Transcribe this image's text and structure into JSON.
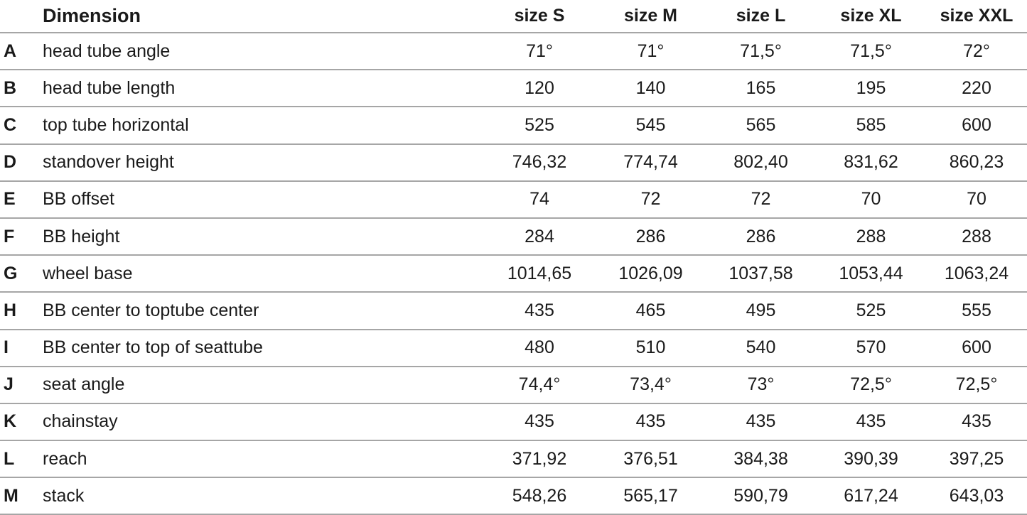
{
  "chart_data": {
    "type": "table",
    "title": "",
    "columns": [
      "Dimension",
      "size S",
      "size M",
      "size L",
      "size XL",
      "size XXL"
    ],
    "rows": [
      {
        "letter": "A",
        "name": "head tube angle",
        "values": [
          "71°",
          "71°",
          "71,5°",
          "71,5°",
          "72°"
        ]
      },
      {
        "letter": "B",
        "name": "head tube length",
        "values": [
          "120",
          "140",
          "165",
          "195",
          "220"
        ]
      },
      {
        "letter": "C",
        "name": "top tube horizontal",
        "values": [
          "525",
          "545",
          "565",
          "585",
          "600"
        ]
      },
      {
        "letter": "D",
        "name": "standover height",
        "values": [
          "746,32",
          "774,74",
          "802,40",
          "831,62",
          "860,23"
        ]
      },
      {
        "letter": "E",
        "name": "BB offset",
        "values": [
          "74",
          "72",
          "72",
          "70",
          "70"
        ]
      },
      {
        "letter": "F",
        "name": "BB height",
        "values": [
          "284",
          "286",
          "286",
          "288",
          "288"
        ]
      },
      {
        "letter": "G",
        "name": "wheel base",
        "values": [
          "1014,65",
          "1026,09",
          "1037,58",
          "1053,44",
          "1063,24"
        ]
      },
      {
        "letter": "H",
        "name": "BB center to toptube center",
        "values": [
          "435",
          "465",
          "495",
          "525",
          "555"
        ]
      },
      {
        "letter": "I",
        "name": "BB center to top of seattube",
        "values": [
          "480",
          "510",
          "540",
          "570",
          "600"
        ]
      },
      {
        "letter": "J",
        "name": "seat angle",
        "values": [
          "74,4°",
          "73,4°",
          "73°",
          "72,5°",
          "72,5°"
        ]
      },
      {
        "letter": "K",
        "name": "chainstay",
        "values": [
          "435",
          "435",
          "435",
          "435",
          "435"
        ]
      },
      {
        "letter": "L",
        "name": "reach",
        "values": [
          "371,92",
          "376,51",
          "384,38",
          "390,39",
          "397,25"
        ]
      },
      {
        "letter": "M",
        "name": "stack",
        "values": [
          "548,26",
          "565,17",
          "590,79",
          "617,24",
          "643,03"
        ]
      }
    ],
    "layout": {
      "grid": "horizontal-row-dividers",
      "header_row": true,
      "value_alignment": "center",
      "decimal_separator": ","
    },
    "colors": {
      "text": "#1a1a1a",
      "divider": "#a6a6a6",
      "background": "#ffffff"
    }
  }
}
